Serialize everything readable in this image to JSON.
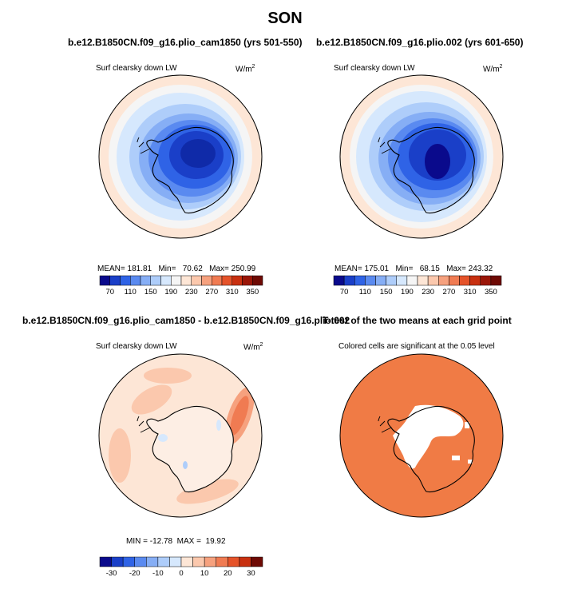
{
  "figure": {
    "season": "SON",
    "panels": [
      {
        "title": "b.e12.B1850CN.f09_g16.plio_cam1850 (yrs 501-550)",
        "variable": "Surf clearsky down LW",
        "units": "W/m",
        "units_exp": "2",
        "stats": {
          "mean": "181.81",
          "min": "70.62",
          "max": "250.99"
        }
      },
      {
        "title": "b.e12.B1850CN.f09_g16.plio.002 (yrs 601-650)",
        "variable": "Surf clearsky down LW",
        "units": "W/m",
        "units_exp": "2",
        "stats": {
          "mean": "175.01",
          "min": "68.15",
          "max": "243.32"
        }
      },
      {
        "title": "b.e12.B1850CN.f09_g16.plio_cam1850 - b.e12.B1850CN.f09_g16.plio.002",
        "variable": "Surf clearsky down LW",
        "units": "W/m",
        "units_exp": "2",
        "stats": {
          "min": "-12.78",
          "max": "19.92"
        }
      },
      {
        "title": "T-test of the two means at each grid point",
        "subtitle": "Colored cells are significant at the 0.05 level"
      }
    ],
    "stat_labels": {
      "mean": "MEAN=",
      "min": "Min=",
      "max": "Max=",
      "min_upper": "MIN =",
      "max_upper": "MAX ="
    }
  },
  "colorbars": {
    "abs": {
      "labels": [
        "70",
        "110",
        "150",
        "190",
        "230",
        "270",
        "310",
        "350"
      ],
      "colors": [
        "#0a0a8c",
        "#1a3fc8",
        "#2f63e6",
        "#5a8af0",
        "#86aef5",
        "#aecdfa",
        "#d6e8fd",
        "#f5f5f5",
        "#fde6d6",
        "#fbc8ad",
        "#f6a17e",
        "#f07b52",
        "#e5532a",
        "#c83010",
        "#9a1608",
        "#6e0a04"
      ]
    },
    "diff": {
      "labels": [
        "-30",
        "-20",
        "-10",
        "0",
        "10",
        "20",
        "30"
      ],
      "colors": [
        "#0a0a8c",
        "#1a3fc8",
        "#2f63e6",
        "#5a8af0",
        "#86aef5",
        "#aecdfa",
        "#d6e8fd",
        "#fde6d6",
        "#fbc8ad",
        "#f6a17e",
        "#f07b52",
        "#e5532a",
        "#c83010",
        "#6e0a04"
      ]
    }
  }
}
